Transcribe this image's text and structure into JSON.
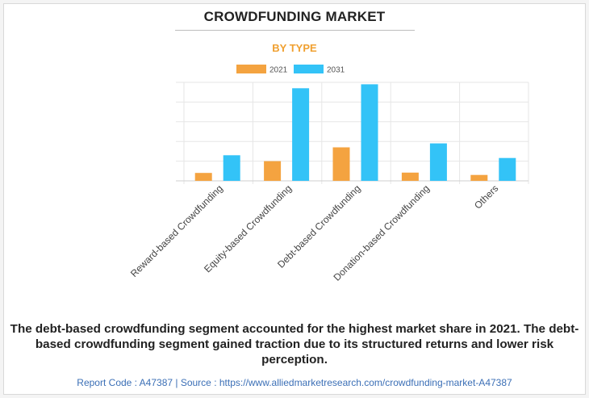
{
  "header": {
    "title": "CROWDFUNDING MARKET",
    "subtitle": "BY TYPE"
  },
  "legend": [
    {
      "label": "2021",
      "color": "#f4a340"
    },
    {
      "label": "2031",
      "color": "#33c3f7"
    }
  ],
  "chart_data": {
    "type": "bar",
    "title": "CROWDFUNDING MARKET",
    "subtitle": "BY TYPE",
    "categories": [
      "Reward-based Crowdfunding",
      "Equity-based Crowdfunding",
      "Debt-based Crowdfunding",
      "Donation-based Crowdfunding",
      "Others"
    ],
    "series": [
      {
        "name": "2021",
        "color": "#f4a340",
        "values": [
          2.0,
          5.0,
          8.5,
          2.1,
          1.5
        ]
      },
      {
        "name": "2031",
        "color": "#33c3f7",
        "values": [
          6.5,
          23.5,
          24.5,
          9.5,
          5.8
        ]
      }
    ],
    "ylim": [
      0,
      25
    ],
    "grid": true,
    "legend_position": "top-center",
    "xlabel": "",
    "ylabel": ""
  },
  "caption": "The debt-based crowdfunding segment accounted for the highest market share in 2021. The debt-based crowdfunding segment gained traction due to its structured returns and lower risk perception.",
  "footer": "Report Code : A47387  |  Source : https://www.alliedmarketresearch.com/crowdfunding-market-A47387"
}
